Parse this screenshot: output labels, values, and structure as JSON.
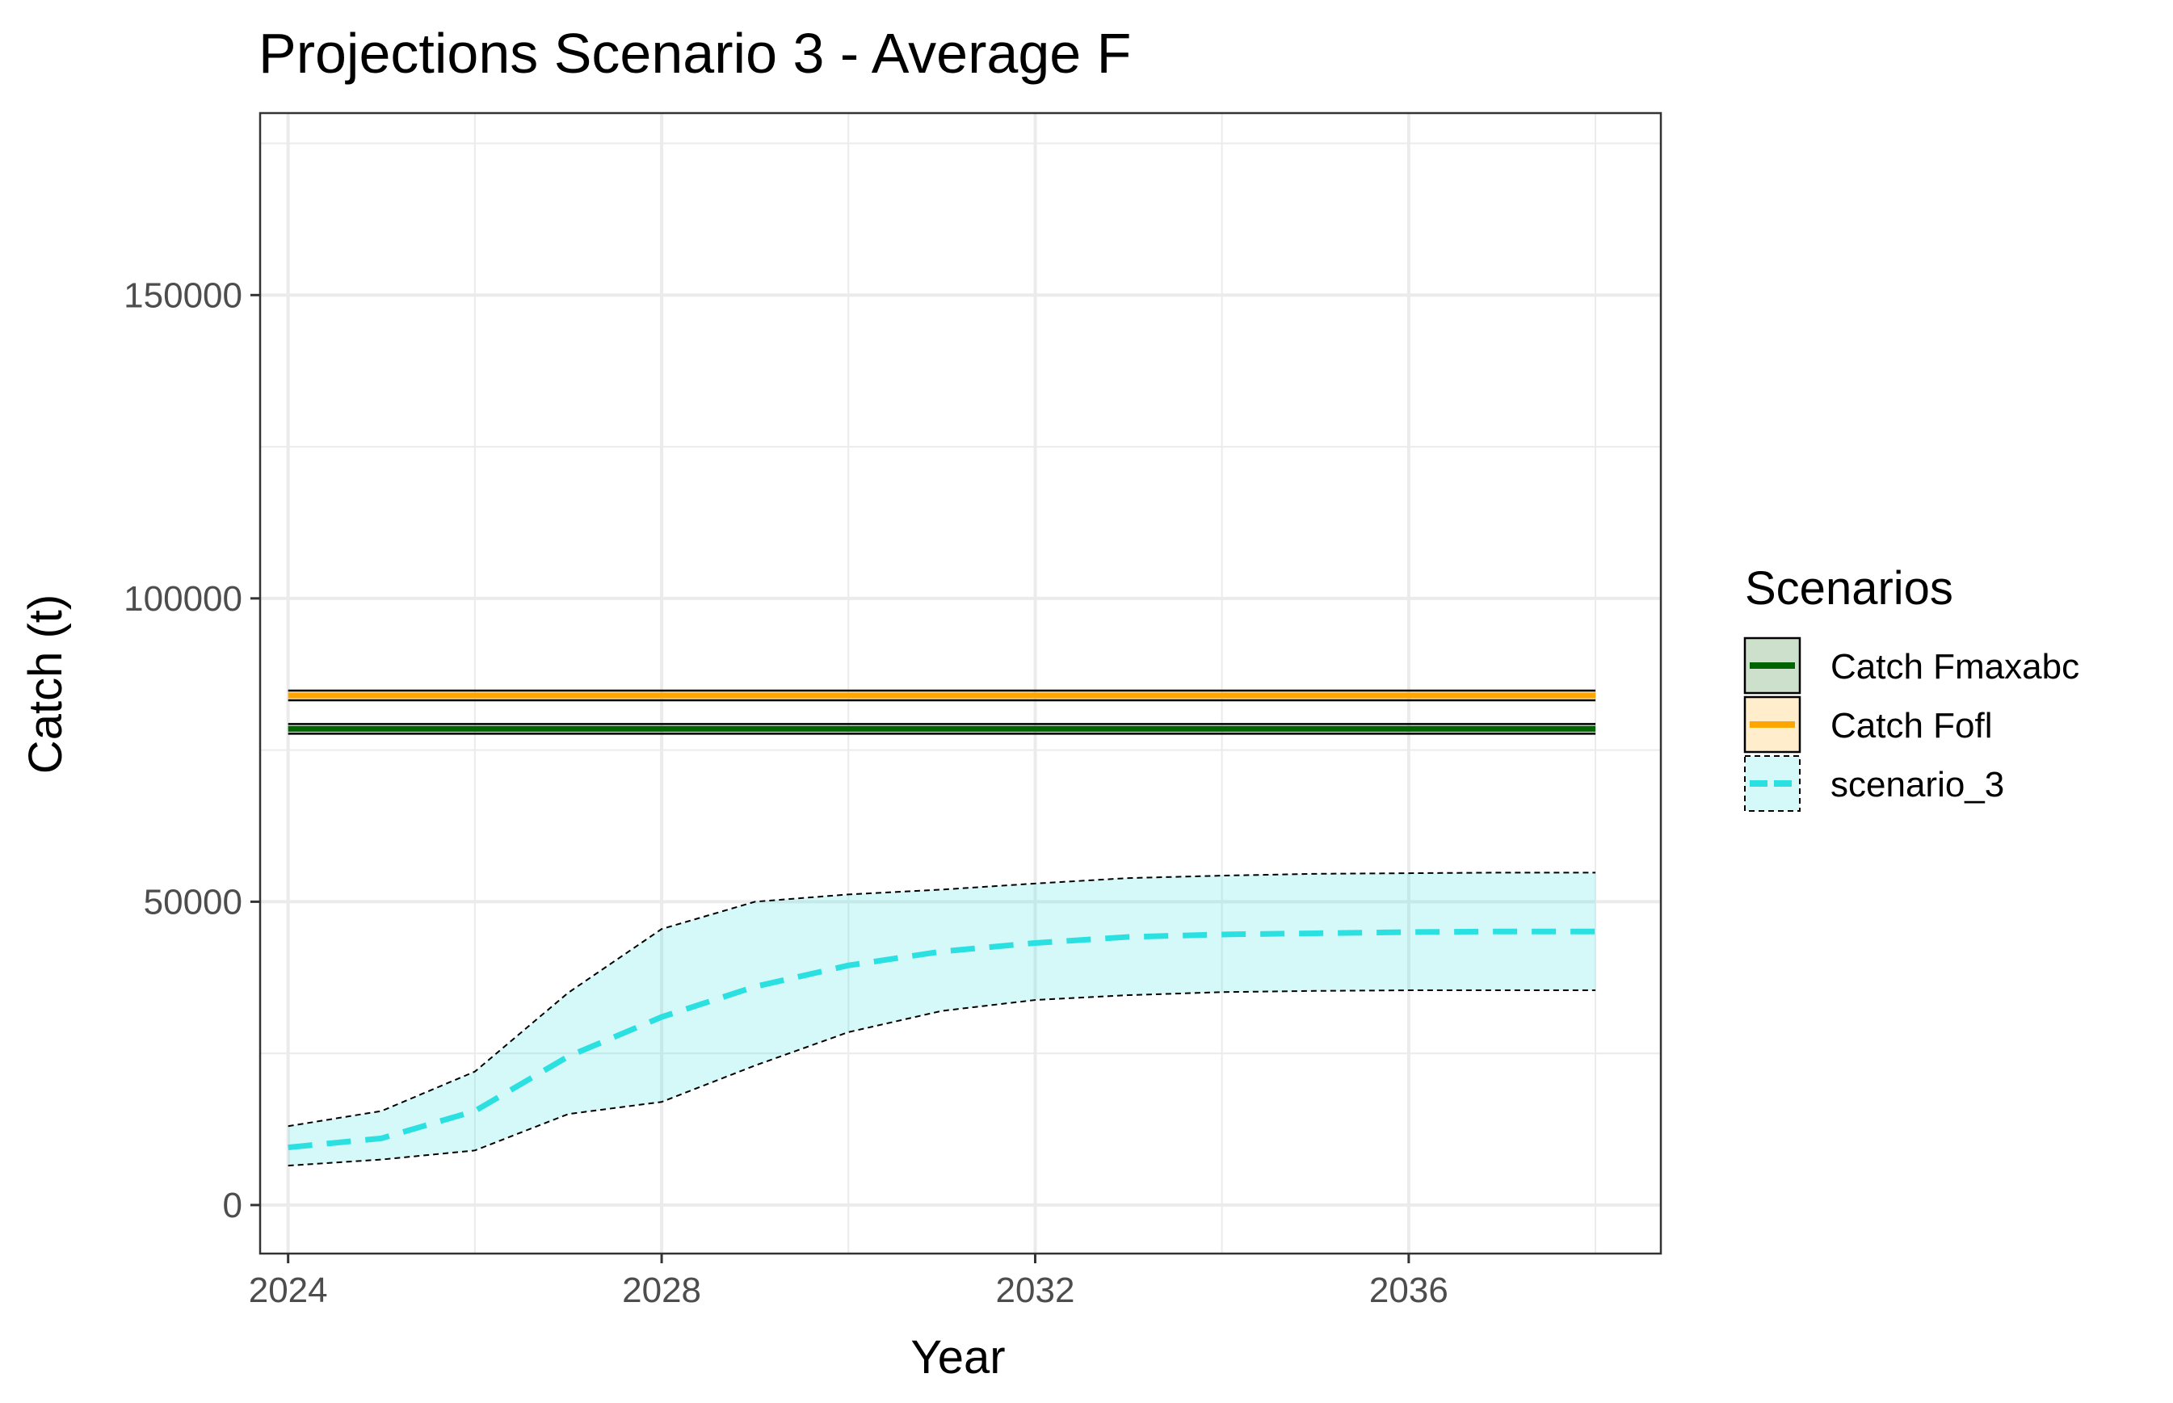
{
  "chart_data": {
    "type": "line",
    "title": "Projections Scenario 3 - Average F",
    "xlabel": "Year",
    "ylabel": "Catch (t)",
    "xlim": [
      2023.7,
      2038.7
    ],
    "ylim": [
      -8000,
      180000
    ],
    "x_ticks": [
      2024,
      2028,
      2032,
      2036
    ],
    "x_minor": [
      2026,
      2030,
      2034,
      2038
    ],
    "y_ticks": [
      0,
      50000,
      100000,
      150000
    ],
    "y_minor": [
      25000,
      75000,
      125000,
      175000
    ],
    "grid": true,
    "legend": {
      "title": "Scenarios",
      "position": "right"
    },
    "x": [
      2024,
      2025,
      2026,
      2027,
      2028,
      2029,
      2030,
      2031,
      2032,
      2033,
      2034,
      2035,
      2036,
      2037,
      2038
    ],
    "series": [
      {
        "name": "Catch Fmaxabc",
        "color": "#006400",
        "line_style": "solid",
        "values": [
          78500,
          78500,
          78500,
          78500,
          78500,
          78500,
          78500,
          78500,
          78500,
          78500,
          78500,
          78500,
          78500,
          78500,
          78500
        ],
        "band_lower": [
          77700,
          77700,
          77700,
          77700,
          77700,
          77700,
          77700,
          77700,
          77700,
          77700,
          77700,
          77700,
          77700,
          77700,
          77700
        ],
        "band_upper": [
          79300,
          79300,
          79300,
          79300,
          79300,
          79300,
          79300,
          79300,
          79300,
          79300,
          79300,
          79300,
          79300,
          79300,
          79300
        ]
      },
      {
        "name": "Catch Fofl",
        "color": "#FFA500",
        "line_style": "solid",
        "values": [
          84000,
          84000,
          84000,
          84000,
          84000,
          84000,
          84000,
          84000,
          84000,
          84000,
          84000,
          84000,
          84000,
          84000,
          84000
        ],
        "band_lower": [
          83200,
          83200,
          83200,
          83200,
          83200,
          83200,
          83200,
          83200,
          83200,
          83200,
          83200,
          83200,
          83200,
          83200,
          83200
        ],
        "band_upper": [
          84800,
          84800,
          84800,
          84800,
          84800,
          84800,
          84800,
          84800,
          84800,
          84800,
          84800,
          84800,
          84800,
          84800,
          84800
        ]
      },
      {
        "name": "scenario_3",
        "color": "#2BE0E0",
        "line_style": "dashed",
        "values": [
          9500,
          11000,
          15500,
          24500,
          31000,
          36000,
          39500,
          41800,
          43200,
          44200,
          44600,
          44800,
          45000,
          45100,
          45100
        ],
        "band_lower": [
          6500,
          7500,
          9000,
          15000,
          17000,
          23000,
          28500,
          32000,
          33800,
          34600,
          35100,
          35300,
          35400,
          35400,
          35400
        ],
        "band_upper": [
          13000,
          15500,
          22000,
          35000,
          45500,
          50000,
          51200,
          52000,
          53000,
          53900,
          54300,
          54600,
          54700,
          54800,
          54800
        ]
      }
    ]
  }
}
